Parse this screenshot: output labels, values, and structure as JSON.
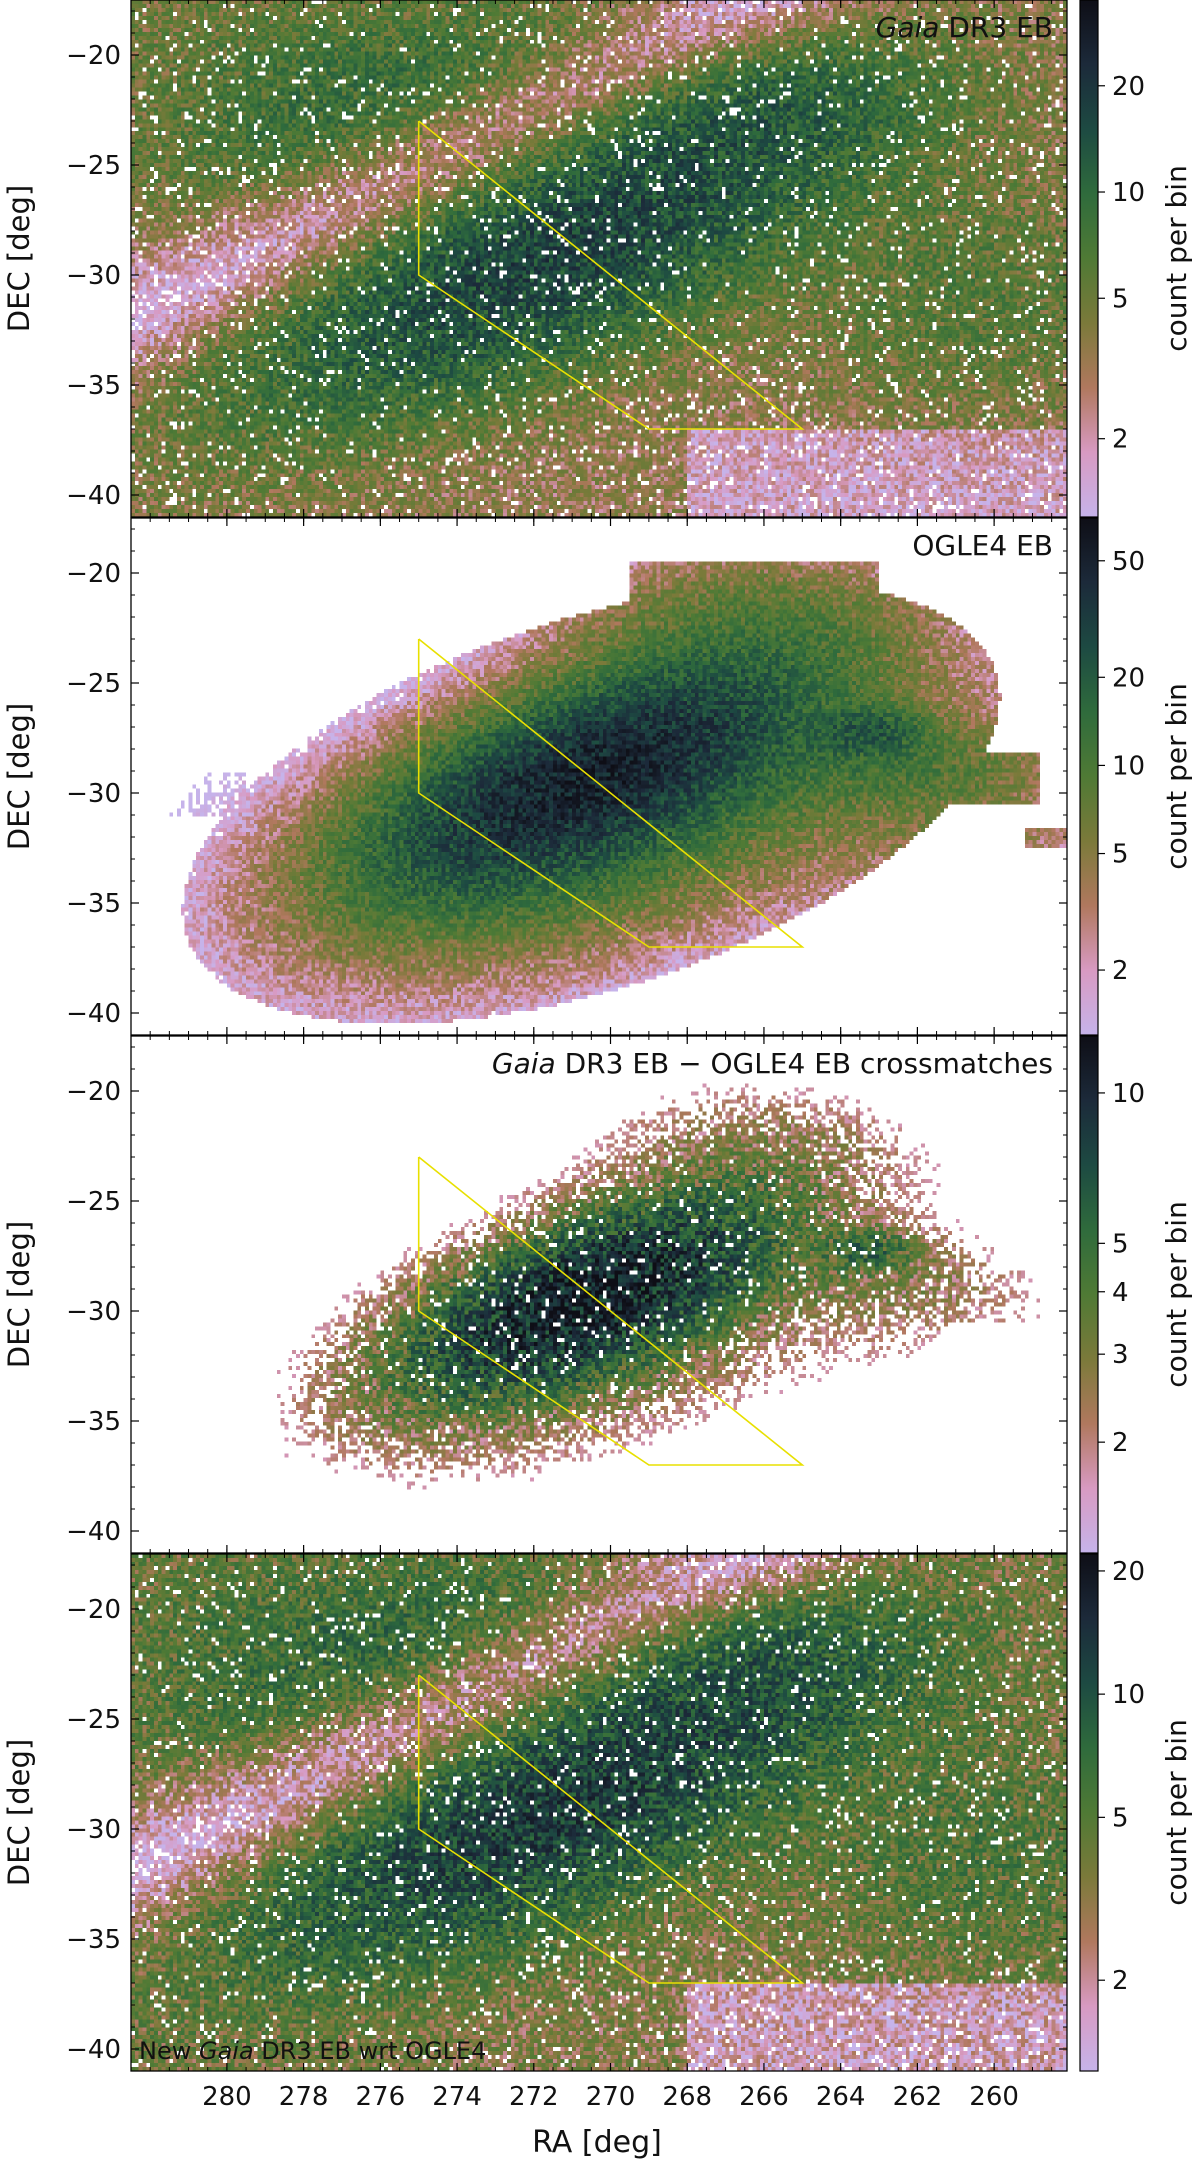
{
  "figure": {
    "xlabel": "RA [deg]",
    "ylabel": "DEC [deg]",
    "colorbar_label": "count per bin",
    "colormap": [
      "#c6b3ea",
      "#d89ac2",
      "#b0785e",
      "#7b7a3a",
      "#4f7a35",
      "#2f6b3c",
      "#1d4a42",
      "#1c2a3a",
      "#0e0e16"
    ],
    "polygon_color": "#e8e000"
  },
  "chart_data": [
    {
      "type": "heatmap",
      "title_parts": [
        {
          "text": "Gaia",
          "italic": true
        },
        {
          "text": " DR3 EB",
          "italic": false
        }
      ],
      "title_position": "top-right",
      "xlabel": "",
      "ylabel": "DEC [deg]",
      "xlim": [
        282.5,
        258.1
      ],
      "ylim": [
        -41.0,
        -17.5
      ],
      "xticks": [],
      "yticks": [
        "−20",
        "−25",
        "−30",
        "−35",
        "−40"
      ],
      "ytick_values": [
        -20,
        -25,
        -30,
        -35,
        -40
      ],
      "colorbar": {
        "label": "count per bin",
        "scale": "log",
        "range": [
          1.2,
          35
        ],
        "ticks": [
          2,
          5,
          10,
          20
        ],
        "tick_labels": [
          "2",
          "5",
          "10",
          "20"
        ]
      },
      "density_regions": [
        {
          "ra": 271.5,
          "dec": -28.5,
          "level": 16
        },
        {
          "ra": 275.0,
          "dec": -23.0,
          "level": 6
        },
        {
          "ra": 267.0,
          "dec": -22.0,
          "level": 5
        },
        {
          "ra": 260.5,
          "dec": -30.5,
          "level": 4
        },
        {
          "ra": 278.0,
          "dec": -20.5,
          "level": 3
        }
      ],
      "polygon": {
        "ra": [
          275.0,
          275.0,
          269.0,
          265.0,
          275.0
        ],
        "dec": [
          -23.0,
          -30.0,
          -37.0,
          -37.0,
          -23.0
        ]
      }
    },
    {
      "type": "heatmap",
      "title_parts": [
        {
          "text": "OGLE4 EB",
          "italic": false
        }
      ],
      "title_position": "top-right",
      "xlabel": "",
      "ylabel": "DEC [deg]",
      "xlim": [
        282.5,
        258.1
      ],
      "ylim": [
        -41.0,
        -17.5
      ],
      "xticks": [],
      "yticks": [
        "−20",
        "−25",
        "−30",
        "−35",
        "−40"
      ],
      "ytick_values": [
        -20,
        -25,
        -30,
        -35,
        -40
      ],
      "colorbar": {
        "label": "count per bin",
        "scale": "log",
        "range": [
          1.2,
          70
        ],
        "ticks": [
          2,
          5,
          10,
          20,
          50
        ],
        "tick_labels": [
          "2",
          "5",
          "10",
          "20",
          "50"
        ]
      },
      "density_regions": [
        {
          "ra": 270.5,
          "dec": -29.0,
          "level": 45
        },
        {
          "ra": 273.5,
          "dec": -27.5,
          "level": 15
        },
        {
          "ra": 267.5,
          "dec": -33.5,
          "level": 10
        },
        {
          "ra": 266.0,
          "dec": -22.5,
          "level": 5
        },
        {
          "ra": 263.0,
          "dec": -27.0,
          "level": 25
        },
        {
          "ra": 260.0,
          "dec": -29.5,
          "level": 4
        }
      ],
      "polygon": {
        "ra": [
          275.0,
          275.0,
          269.0,
          265.0,
          275.0
        ],
        "dec": [
          -23.0,
          -30.0,
          -37.0,
          -37.0,
          -23.0
        ]
      }
    },
    {
      "type": "heatmap",
      "title_parts": [
        {
          "text": "Gaia",
          "italic": true
        },
        {
          "text": " DR3 EB − OGLE4 EB crossmatches",
          "italic": false
        }
      ],
      "title_position": "top-right",
      "xlabel": "",
      "ylabel": "DEC [deg]",
      "xlim": [
        282.5,
        258.1
      ],
      "ylim": [
        -41.0,
        -17.5
      ],
      "xticks": [],
      "yticks": [
        "−20",
        "−25",
        "−30",
        "−35",
        "−40"
      ],
      "ytick_values": [
        -20,
        -25,
        -30,
        -35,
        -40
      ],
      "colorbar": {
        "label": "count per bin",
        "scale": "log",
        "range": [
          1.2,
          13
        ],
        "ticks": [
          2,
          3,
          4,
          5,
          10
        ],
        "tick_labels": [
          "2",
          "3",
          "4",
          "5",
          "10"
        ]
      },
      "density_regions": [
        {
          "ra": 271.0,
          "dec": -29.5,
          "level": 5
        },
        {
          "ra": 268.5,
          "dec": -33.5,
          "level": 4
        },
        {
          "ra": 266.0,
          "dec": -22.5,
          "level": 4
        },
        {
          "ra": 260.0,
          "dec": -29.5,
          "level": 3
        }
      ],
      "polygon": {
        "ra": [
          275.0,
          275.0,
          269.0,
          265.0,
          275.0
        ],
        "dec": [
          -23.0,
          -30.0,
          -37.0,
          -37.0,
          -23.0
        ]
      }
    },
    {
      "type": "heatmap",
      "title_parts": [
        {
          "text": "New ",
          "italic": false
        },
        {
          "text": "Gaia",
          "italic": true
        },
        {
          "text": " DR3 EB wrt OGLE4",
          "italic": false
        }
      ],
      "title_position": "bottom-left",
      "xlabel": "RA [deg]",
      "ylabel": "DEC [deg]",
      "xlim": [
        282.5,
        258.1
      ],
      "ylim": [
        -41.0,
        -17.5
      ],
      "xticks": [
        "280",
        "278",
        "276",
        "274",
        "272",
        "270",
        "268",
        "266",
        "264",
        "262",
        "260"
      ],
      "xtick_values": [
        280,
        278,
        276,
        274,
        272,
        270,
        268,
        266,
        264,
        262,
        260
      ],
      "yticks": [
        "−20",
        "−25",
        "−30",
        "−35",
        "−40"
      ],
      "ytick_values": [
        -20,
        -25,
        -30,
        -35,
        -40
      ],
      "colorbar": {
        "label": "count per bin",
        "scale": "log",
        "range": [
          1.2,
          22
        ],
        "ticks": [
          2,
          5,
          10,
          20
        ],
        "tick_labels": [
          "2",
          "5",
          "10",
          "20"
        ]
      },
      "density_regions": [
        {
          "ra": 272.0,
          "dec": -28.0,
          "level": 10
        },
        {
          "ra": 275.5,
          "dec": -23.0,
          "level": 5
        },
        {
          "ra": 267.0,
          "dec": -22.0,
          "level": 4
        },
        {
          "ra": 260.5,
          "dec": -30.5,
          "level": 3
        }
      ],
      "polygon": {
        "ra": [
          275.0,
          275.0,
          269.0,
          265.0,
          275.0
        ],
        "dec": [
          -23.0,
          -30.0,
          -37.0,
          -37.0,
          -23.0
        ]
      }
    }
  ]
}
